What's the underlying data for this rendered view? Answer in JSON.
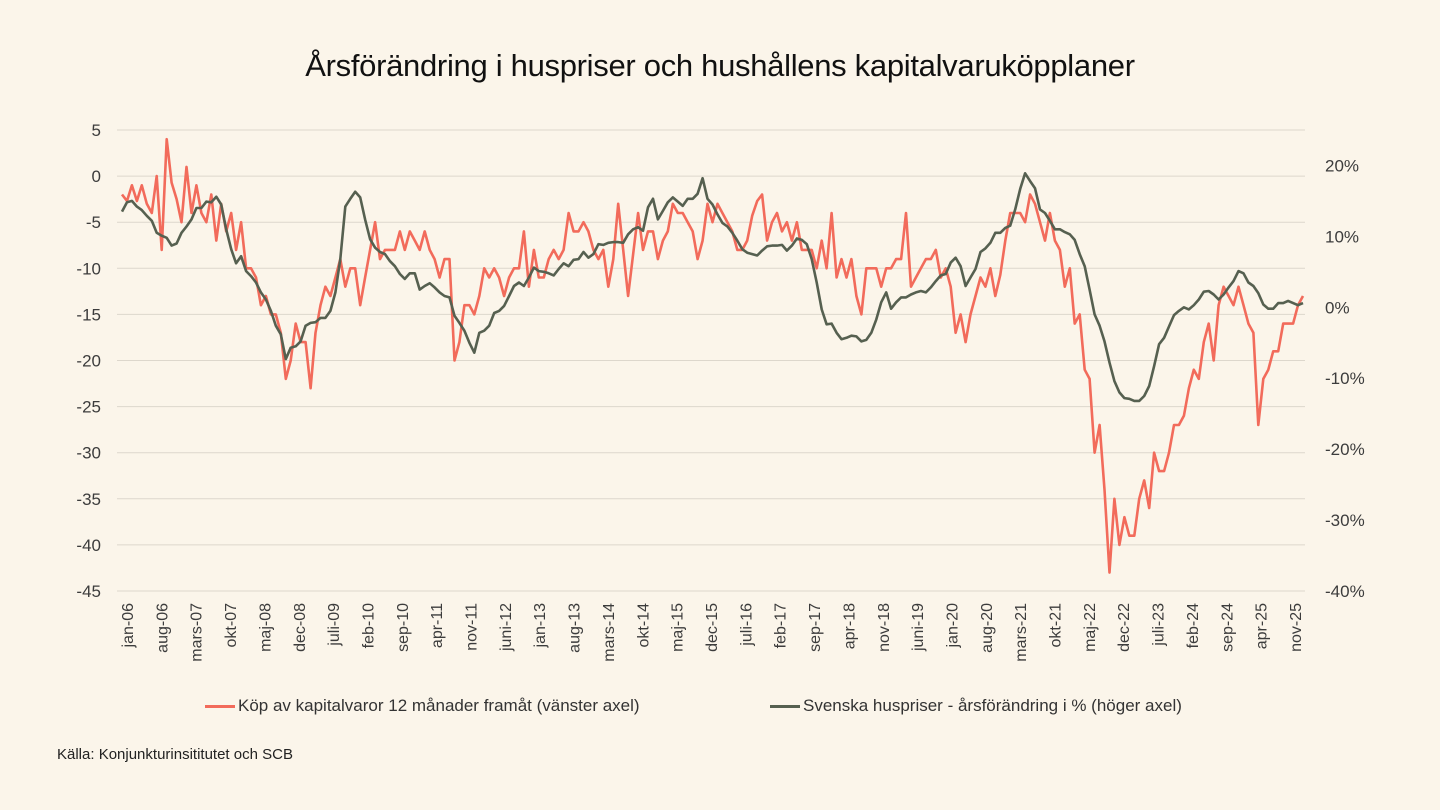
{
  "title": "Årsförändring i huspriser och hushållens kapitalvaruköpplaner",
  "source": "Källa: Konjunkturinsititutet och SCB",
  "colors": {
    "background": "#fbf5ea",
    "grid": "#ddd7cc",
    "series_red": "#f26b5b",
    "series_green": "#566050"
  },
  "chart_data": {
    "type": "line",
    "title": "Årsförändring i huspriser och hushållens kapitalvaruköpplaner",
    "frequency": "monthly",
    "x_range": [
      "jan-06",
      "nov-25"
    ],
    "x_tick_labels": [
      "jan-06",
      "aug-06",
      "mars-07",
      "okt-07",
      "maj-08",
      "dec-08",
      "juli-09",
      "feb-10",
      "sep-10",
      "apr-11",
      "nov-11",
      "juni-12",
      "jan-13",
      "aug-13",
      "mars-14",
      "okt-14",
      "maj-15",
      "dec-15",
      "juli-16",
      "feb-17",
      "sep-17",
      "apr-18",
      "nov-18",
      "juni-19",
      "jan-20",
      "aug-20",
      "mars-21",
      "okt-21",
      "maj-22",
      "dec-22",
      "juli-23",
      "feb-24",
      "sep-24",
      "apr-25",
      "nov-25"
    ],
    "y_left": {
      "ylim": [
        -45,
        5
      ],
      "ticks": [
        "5",
        "0",
        "-5",
        "-10",
        "-15",
        "-20",
        "-25",
        "-30",
        "-35",
        "-40",
        "-45"
      ],
      "tick_values": [
        5,
        0,
        -5,
        -10,
        -15,
        -20,
        -25,
        -30,
        -35,
        -40,
        -45
      ]
    },
    "y_right": {
      "ylim": [
        -40,
        25
      ],
      "ticks": [
        "20%",
        "10%",
        "0%",
        "-10%",
        "-20%",
        "-30%",
        "-40%"
      ],
      "tick_values": [
        20,
        10,
        0,
        -10,
        -20,
        -30,
        -40
      ]
    },
    "grid": true,
    "legend_placement": "bottom",
    "series": [
      {
        "name": "Köp av kapitalvaror 12 månader framåt (vänster axel)",
        "axis": "left",
        "color": "#f26b5b",
        "values": [
          -2,
          -2.7,
          -1,
          -2.7,
          -1,
          -3,
          -4,
          0,
          -8,
          4,
          -0.7,
          -2.5,
          -5,
          1,
          -4,
          -1,
          -4,
          -5,
          -2,
          -7,
          -3,
          -6,
          -4,
          -8,
          -5,
          -10,
          -10,
          -11,
          -14,
          -13,
          -15,
          -15,
          -17,
          -22,
          -20,
          -16,
          -18,
          -18,
          -23,
          -17,
          -14,
          -12,
          -13,
          -11,
          -9,
          -12,
          -10,
          -10,
          -14,
          -11,
          -8,
          -5,
          -9,
          -8,
          -8,
          -8,
          -6,
          -8,
          -6,
          -7,
          -8,
          -6,
          -8,
          -9,
          -11,
          -9,
          -9,
          -20,
          -18,
          -14,
          -14,
          -15,
          -13,
          -10,
          -11,
          -10,
          -11,
          -13,
          -11,
          -10,
          -10,
          -6,
          -12,
          -8,
          -11,
          -11,
          -9,
          -8,
          -9,
          -8,
          -4,
          -6,
          -6,
          -5,
          -6,
          -8,
          -9,
          -8,
          -12,
          -9,
          -3,
          -8,
          -13,
          -8.5,
          -4,
          -8,
          -6,
          -6,
          -9,
          -7,
          -6,
          -3,
          -4,
          -4,
          -5,
          -6,
          -9,
          -7,
          -3,
          -5,
          -3,
          -4,
          -5,
          -6,
          -8,
          -8,
          -7,
          -4.3,
          -2.7,
          -2,
          -7,
          -5,
          -4,
          -6,
          -5,
          -7,
          -5,
          -8,
          -8,
          -8,
          -10,
          -7,
          -10,
          -4,
          -11,
          -9,
          -11,
          -9,
          -13,
          -15,
          -10,
          -10,
          -10,
          -12,
          -10,
          -10,
          -9,
          -9,
          -4,
          -12,
          -11,
          -10,
          -9,
          -9,
          -8,
          -11,
          -10,
          -12,
          -17,
          -15,
          -18,
          -15,
          -13,
          -11,
          -12,
          -10,
          -13,
          -10.7,
          -7,
          -4,
          -4,
          -4,
          -5,
          -2,
          -3,
          -5,
          -7,
          -4,
          -7,
          -8,
          -12,
          -10,
          -16,
          -15,
          -21,
          -22,
          -30,
          -27,
          -34,
          -43,
          -35,
          -40,
          -37,
          -39,
          -39,
          -35,
          -33,
          -36,
          -30,
          -32,
          -32,
          -30,
          -27,
          -27,
          -26,
          -23,
          -21,
          -22,
          -18,
          -16,
          -20,
          -14,
          -12,
          -13,
          -14,
          -12,
          -14,
          -16,
          -17,
          -27,
          -22,
          -21,
          -19,
          -19,
          -16,
          -16,
          -16,
          -14,
          -13
        ]
      },
      {
        "name": "Svenska huspriser - årsförändring i % (höger axel)",
        "axis": "right",
        "color": "#566050",
        "values": [
          13.5,
          14.8,
          15,
          14.2,
          13.7,
          12.9,
          12.2,
          10.5,
          10.1,
          9.8,
          8.7,
          9,
          10.5,
          11.4,
          12.4,
          14,
          14,
          14.9,
          14.8,
          15.6,
          14.5,
          11,
          8.2,
          6.2,
          7.2,
          5.1,
          4.4,
          3.5,
          2.1,
          1.1,
          -0.5,
          -2.6,
          -3.8,
          -7.3,
          -5.7,
          -5.5,
          -4.8,
          -2.6,
          -2.2,
          -2.1,
          -1.5,
          -1.5,
          -0.5,
          2.1,
          6.8,
          14.2,
          15.3,
          16.3,
          15.5,
          12.4,
          9.6,
          8.4,
          7.8,
          7.5,
          6.5,
          5.8,
          4.7,
          4,
          4.8,
          4.8,
          2.5,
          3,
          3.4,
          2.8,
          2.1,
          1.6,
          1.4,
          -1.2,
          -2.2,
          -3.3,
          -5,
          -6.4,
          -3.6,
          -3.3,
          -2.6,
          -0.8,
          -0.5,
          0.2,
          1.6,
          3,
          3.5,
          3,
          4.2,
          5.6,
          5.1,
          5,
          4.8,
          4.5,
          5.4,
          6.2,
          5.8,
          6.7,
          6.8,
          7.8,
          7,
          7.5,
          8.9,
          8.8,
          9.1,
          9.2,
          9.2,
          9.1,
          10.3,
          11,
          11.3,
          10.8,
          14.1,
          15.3,
          12.4,
          13.6,
          14.8,
          15.5,
          14.9,
          14.3,
          15.3,
          15.3,
          16,
          18.2,
          15.3,
          14.5,
          13.1,
          11.9,
          11.4,
          10.5,
          9.4,
          8.2,
          7.7,
          7.5,
          7.3,
          8,
          8.6,
          8.7,
          8.7,
          8.8,
          8,
          8.7,
          9.7,
          9.5,
          8.9,
          6.8,
          3.5,
          -0.3,
          -2.4,
          -2.3,
          -3.6,
          -4.5,
          -4.3,
          -4,
          -4.1,
          -4.8,
          -4.6,
          -3.6,
          -1.7,
          0.7,
          2.1,
          -0.2,
          0.7,
          1.4,
          1.4,
          1.8,
          2.1,
          2.3,
          2.1,
          2.8,
          3.7,
          4.5,
          4.7,
          6.3,
          7,
          5.8,
          3,
          4.2,
          5.4,
          7.8,
          8.3,
          9.1,
          10.5,
          10.5,
          11.2,
          11.5,
          13.8,
          16.7,
          18.9,
          17.8,
          16.8,
          13.8,
          13.3,
          12.2,
          11,
          11,
          10.6,
          10.3,
          9.5,
          7.5,
          5.8,
          2.5,
          -1,
          -2.6,
          -4.8,
          -7.8,
          -10.4,
          -12,
          -12.8,
          -12.9,
          -13.2,
          -13.2,
          -12.5,
          -11.1,
          -8.3,
          -5.2,
          -4.3,
          -2.7,
          -1.1,
          -0.5,
          0,
          -0.3,
          0.3,
          1.1,
          2.2,
          2.3,
          1.8,
          1.1,
          1.8,
          2.8,
          3.7,
          5.1,
          4.8,
          3.5,
          3,
          2,
          0.4,
          -0.2,
          -0.2,
          0.6,
          0.6,
          0.9,
          0.6,
          0.3,
          0.6
        ]
      }
    ]
  }
}
